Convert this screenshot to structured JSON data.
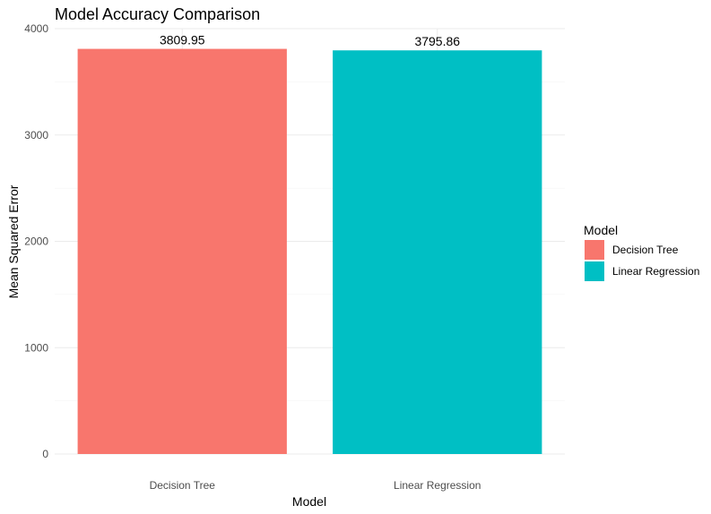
{
  "chart_data": {
    "type": "bar",
    "title": "Model Accuracy Comparison",
    "xlabel": "Model",
    "ylabel": "Mean Squared Error",
    "categories": [
      "Decision Tree",
      "Linear Regression"
    ],
    "values": [
      3809.95,
      3795.86
    ],
    "data_labels": [
      "3809.95",
      "3795.86"
    ],
    "colors": [
      "#f8766d",
      "#00bfc4"
    ],
    "ylim": [
      0,
      4000
    ],
    "yticks": [
      0,
      1000,
      2000,
      3000,
      4000
    ],
    "grid": true,
    "legend": {
      "title": "Model",
      "placement": "right",
      "entries": [
        "Decision Tree",
        "Linear Regression"
      ]
    }
  }
}
